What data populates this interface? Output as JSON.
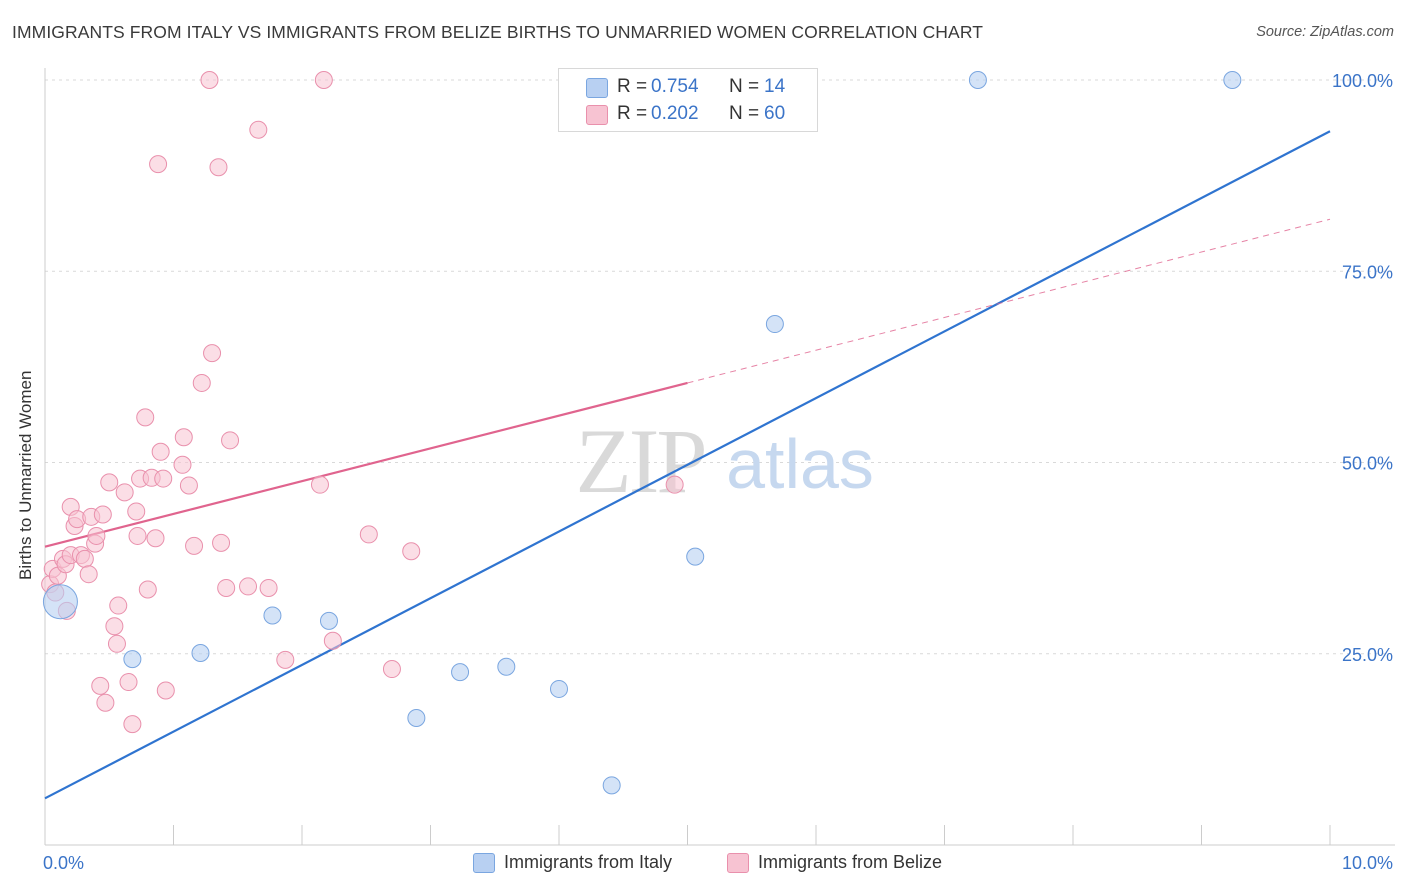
{
  "header": {
    "title": "IMMIGRANTS FROM ITALY VS IMMIGRANTS FROM BELIZE BIRTHS TO UNMARRIED WOMEN CORRELATION CHART",
    "source": "Source: ZipAtlas.com"
  },
  "watermark": {
    "zip": "ZIP",
    "atlas": "atlas"
  },
  "legend": {
    "italy": {
      "r_label": "R =",
      "r_value": "0.754",
      "n_label": "N =",
      "n_value": "14"
    },
    "belize": {
      "r_label": "R =",
      "r_value": "0.202",
      "n_label": "N =",
      "n_value": "60"
    }
  },
  "colors": {
    "italy_fill": "#b8d0f2",
    "italy_stroke": "#7aa6e0",
    "italy_line": "#2f74d0",
    "belize_fill": "#f7c3d2",
    "belize_stroke": "#e990ac",
    "belize_line": "#e0648e",
    "value_text": "#3b74c8",
    "grid": "#d9d9d9"
  },
  "chart_data": {
    "type": "scatter",
    "title": "IMMIGRANTS FROM ITALY VS IMMIGRANTS FROM BELIZE BIRTHS TO UNMARRIED WOMEN CORRELATION CHART",
    "xlabel": "",
    "ylabel": "Births to Unmarried Women",
    "xlim": [
      0,
      10
    ],
    "ylim": [
      0,
      100
    ],
    "x_tick_labels": [
      "0.0%",
      "10.0%"
    ],
    "y_tick_labels": [
      "25.0%",
      "50.0%",
      "75.0%",
      "100.0%"
    ],
    "y_ticks": [
      25,
      50,
      75,
      100
    ],
    "grid": true,
    "legend_position": "bottom-center",
    "series": [
      {
        "name": "Immigrants from Italy",
        "r": 0.754,
        "n": 14,
        "points": [
          [
            0.12,
            31.8
          ],
          [
            0.68,
            24.3
          ],
          [
            1.21,
            25.1
          ],
          [
            1.77,
            30.0
          ],
          [
            2.21,
            29.3
          ],
          [
            2.89,
            16.6
          ],
          [
            3.23,
            22.6
          ],
          [
            3.59,
            23.3
          ],
          [
            4.0,
            20.4
          ],
          [
            4.41,
            7.8
          ],
          [
            5.06,
            37.7
          ],
          [
            5.68,
            68.1
          ],
          [
            7.26,
            100.0
          ],
          [
            9.24,
            100.0
          ]
        ],
        "trend": {
          "x": [
            0.0,
            10.0
          ],
          "y": [
            6.1,
            93.3
          ]
        }
      },
      {
        "name": "Immigrants from Belize",
        "r": 0.202,
        "n": 60,
        "points": [
          [
            0.04,
            34.1
          ],
          [
            0.06,
            36.1
          ],
          [
            0.08,
            33.0
          ],
          [
            0.1,
            35.2
          ],
          [
            0.14,
            37.4
          ],
          [
            0.16,
            36.7
          ],
          [
            0.17,
            30.6
          ],
          [
            0.2,
            37.9
          ],
          [
            0.2,
            44.2
          ],
          [
            0.23,
            41.7
          ],
          [
            0.25,
            42.6
          ],
          [
            0.28,
            37.9
          ],
          [
            0.31,
            37.4
          ],
          [
            0.34,
            35.4
          ],
          [
            0.36,
            42.9
          ],
          [
            0.39,
            39.4
          ],
          [
            0.4,
            40.4
          ],
          [
            0.43,
            20.8
          ],
          [
            0.45,
            43.2
          ],
          [
            0.47,
            18.6
          ],
          [
            0.5,
            47.4
          ],
          [
            0.54,
            28.6
          ],
          [
            0.56,
            26.3
          ],
          [
            0.57,
            31.3
          ],
          [
            0.62,
            46.1
          ],
          [
            0.65,
            21.3
          ],
          [
            0.68,
            15.8
          ],
          [
            0.71,
            43.6
          ],
          [
            0.72,
            40.4
          ],
          [
            0.74,
            47.9
          ],
          [
            0.78,
            55.9
          ],
          [
            0.8,
            33.4
          ],
          [
            0.83,
            48.0
          ],
          [
            0.86,
            40.1
          ],
          [
            0.88,
            89.0
          ],
          [
            0.9,
            51.4
          ],
          [
            0.92,
            47.9
          ],
          [
            0.94,
            20.2
          ],
          [
            1.07,
            49.7
          ],
          [
            1.08,
            53.3
          ],
          [
            1.12,
            47.0
          ],
          [
            1.16,
            39.1
          ],
          [
            1.22,
            60.4
          ],
          [
            1.28,
            100.0
          ],
          [
            1.3,
            64.3
          ],
          [
            1.35,
            88.6
          ],
          [
            1.37,
            39.5
          ],
          [
            1.41,
            33.6
          ],
          [
            1.44,
            52.9
          ],
          [
            1.58,
            33.8
          ],
          [
            1.66,
            93.5
          ],
          [
            1.74,
            33.6
          ],
          [
            1.87,
            24.2
          ],
          [
            2.14,
            47.1
          ],
          [
            2.17,
            100.0
          ],
          [
            2.24,
            26.7
          ],
          [
            2.52,
            40.6
          ],
          [
            2.7,
            23.0
          ],
          [
            2.85,
            38.4
          ],
          [
            4.9,
            47.1
          ]
        ],
        "trend": {
          "x": [
            0.0,
            5.0
          ],
          "y": [
            39.0,
            60.4
          ]
        },
        "trend_extension": {
          "x": [
            5.0,
            10.0
          ],
          "y": [
            60.4,
            81.8
          ]
        }
      }
    ]
  }
}
